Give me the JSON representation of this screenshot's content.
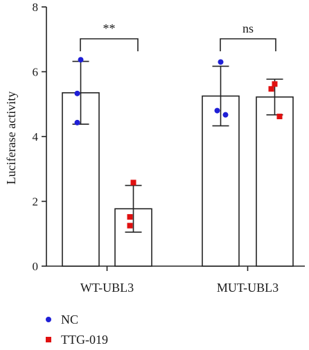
{
  "chart_data": {
    "type": "bar",
    "categories": [
      "WT-UBL3",
      "MUT-UBL3"
    ],
    "ylabel": "Luciferase activity",
    "xlabel": "",
    "ylim": [
      0,
      8
    ],
    "yticks": [
      0,
      2,
      4,
      6,
      8
    ],
    "grid": false,
    "legend_position": "bottom-left",
    "error_bars": "sd",
    "series": [
      {
        "name": "NC",
        "color": "#1f1fd6",
        "marker": "circle",
        "values": [
          5.35,
          5.25
        ],
        "errors": [
          0.97,
          0.92
        ],
        "points": [
          [
            6.37,
            5.33,
            4.43
          ],
          [
            6.3,
            4.8,
            4.67
          ]
        ]
      },
      {
        "name": "TTG-019",
        "color": "#e01010",
        "marker": "square",
        "values": [
          1.77,
          5.22
        ],
        "errors": [
          0.72,
          0.55
        ],
        "points": [
          [
            2.58,
            1.52,
            1.25
          ],
          [
            5.62,
            5.47,
            4.62
          ]
        ]
      }
    ],
    "significance": [
      {
        "category": "WT-UBL3",
        "label": "**"
      },
      {
        "category": "MUT-UBL3",
        "label": "ns"
      }
    ]
  }
}
